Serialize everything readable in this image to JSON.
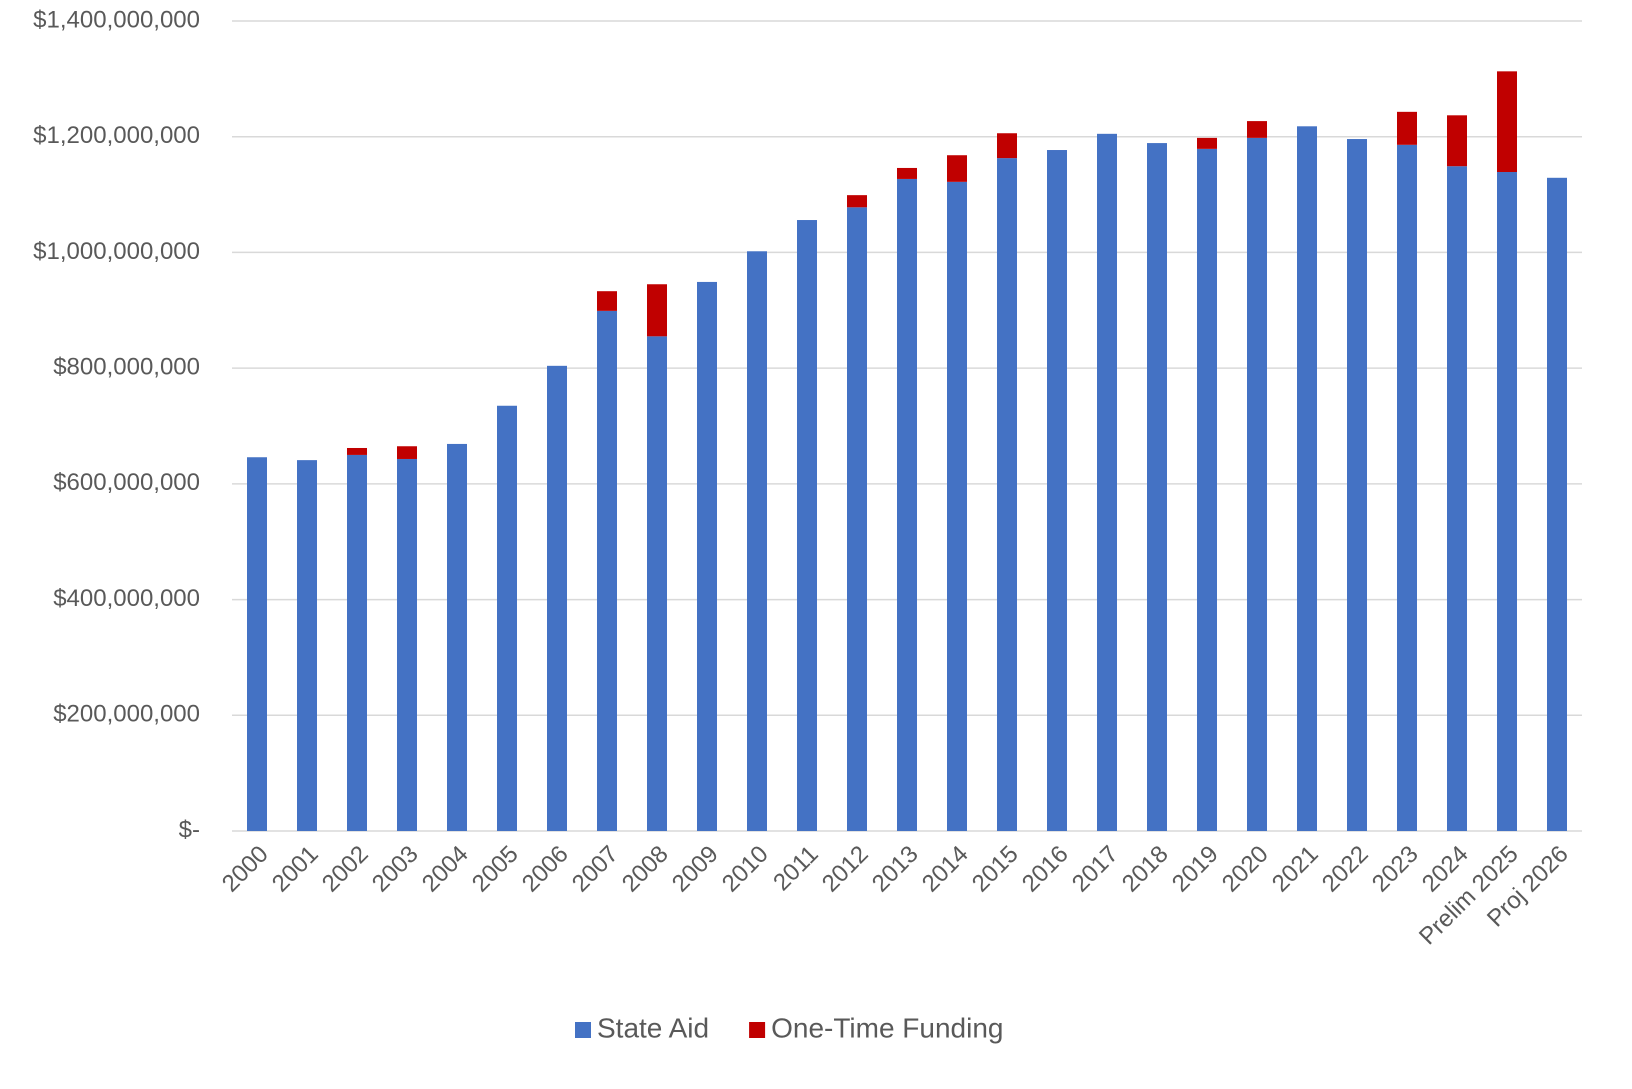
{
  "chart_data": {
    "type": "stacked_bar",
    "categories": [
      "2000",
      "2001",
      "2002",
      "2003",
      "2004",
      "2005",
      "2006",
      "2007",
      "2008",
      "2009",
      "2010",
      "2011",
      "2012",
      "2013",
      "2014",
      "2015",
      "2016",
      "2017",
      "2018",
      "2019",
      "2020",
      "2021",
      "2022",
      "2023",
      "2024",
      "Prelim 2025",
      "Proj 2026"
    ],
    "series": [
      {
        "name": "State Aid",
        "color": "#4472c4",
        "values": [
          646000000,
          641000000,
          650000000,
          643000000,
          669000000,
          735000000,
          804000000,
          899000000,
          855000000,
          949000000,
          1002000000,
          1056000000,
          1078000000,
          1127000000,
          1122000000,
          1163000000,
          1177000000,
          1205000000,
          1189000000,
          1179000000,
          1198000000,
          1218000000,
          1196000000,
          1186000000,
          1149000000,
          1139000000,
          1129000000
        ]
      },
      {
        "name": "One-Time Funding",
        "color": "#c00000",
        "values": [
          0,
          0,
          12000000,
          22000000,
          0,
          0,
          0,
          34000000,
          90000000,
          0,
          0,
          0,
          21000000,
          19000000,
          46000000,
          43000000,
          0,
          0,
          0,
          19000000,
          29000000,
          0,
          0,
          57000000,
          88000000,
          174000000,
          0
        ]
      }
    ],
    "ylim": [
      0,
      1400000000
    ],
    "yticks": [
      {
        "value": 0,
        "label": "$-"
      },
      {
        "value": 200000000,
        "label": "$200,000,000"
      },
      {
        "value": 400000000,
        "label": "$400,000,000"
      },
      {
        "value": 600000000,
        "label": "$600,000,000"
      },
      {
        "value": 800000000,
        "label": "$800,000,000"
      },
      {
        "value": 1000000000,
        "label": "$1,000,000,000"
      },
      {
        "value": 1200000000,
        "label": "$1,200,000,000"
      },
      {
        "value": 1400000000,
        "label": "$1,400,000,000"
      }
    ],
    "grid": true,
    "legend": "bottom"
  }
}
